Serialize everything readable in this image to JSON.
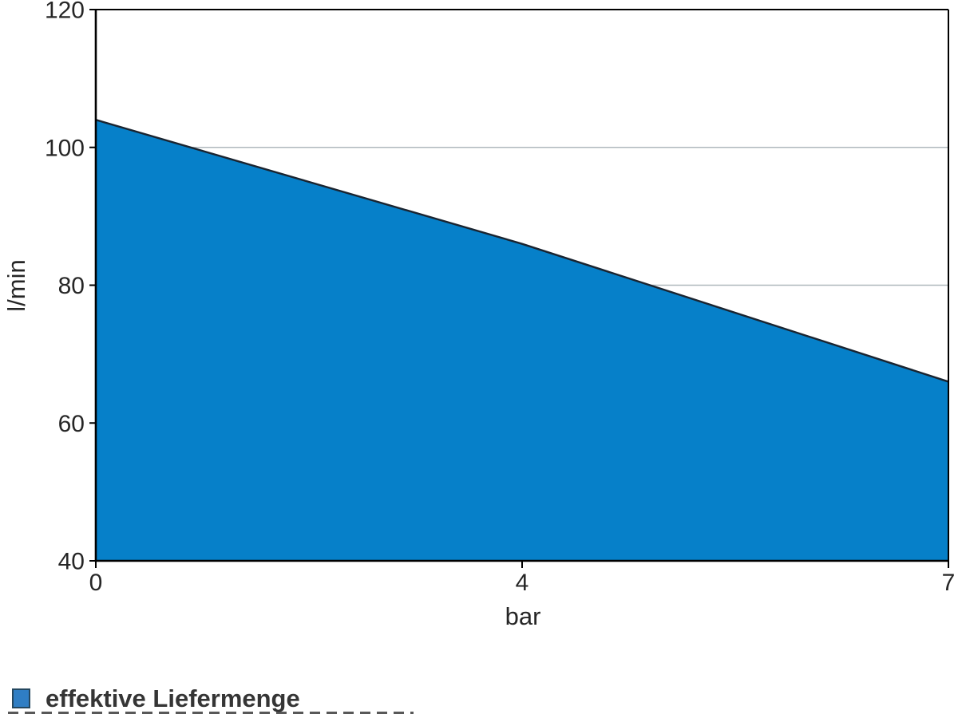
{
  "chart_data": {
    "type": "area",
    "title": "",
    "series": [
      {
        "name": "effektive Liefermenge",
        "x": [
          0,
          4,
          7
        ],
        "values": [
          104,
          86,
          66
        ]
      }
    ],
    "x_axis": {
      "label": "bar",
      "tick_values": [
        0,
        4,
        7
      ],
      "tick_labels": [
        "0",
        "4",
        "7"
      ],
      "scale": "category-equal-spacing"
    },
    "y_axis": {
      "label": "l/min",
      "range": [
        40,
        120
      ],
      "tick_values": [
        40,
        60,
        80,
        100,
        120
      ],
      "tick_labels": [
        "40",
        "60",
        "80",
        "100",
        "120"
      ]
    },
    "gridlines": {
      "y_values": [
        60,
        80,
        100
      ],
      "vertical": false
    },
    "legend_position": "bottom-left",
    "colors": {
      "area_fill": "#0680C9",
      "area_stroke": "#1A2430",
      "grid": "#AFB8BD",
      "axis": "#000000",
      "text": "#262626"
    }
  },
  "legend": {
    "entries": [
      {
        "label": "effektive Liefermenge",
        "swatch_fill": "#2F7EC4",
        "swatch_border": "#24475F"
      }
    ]
  }
}
